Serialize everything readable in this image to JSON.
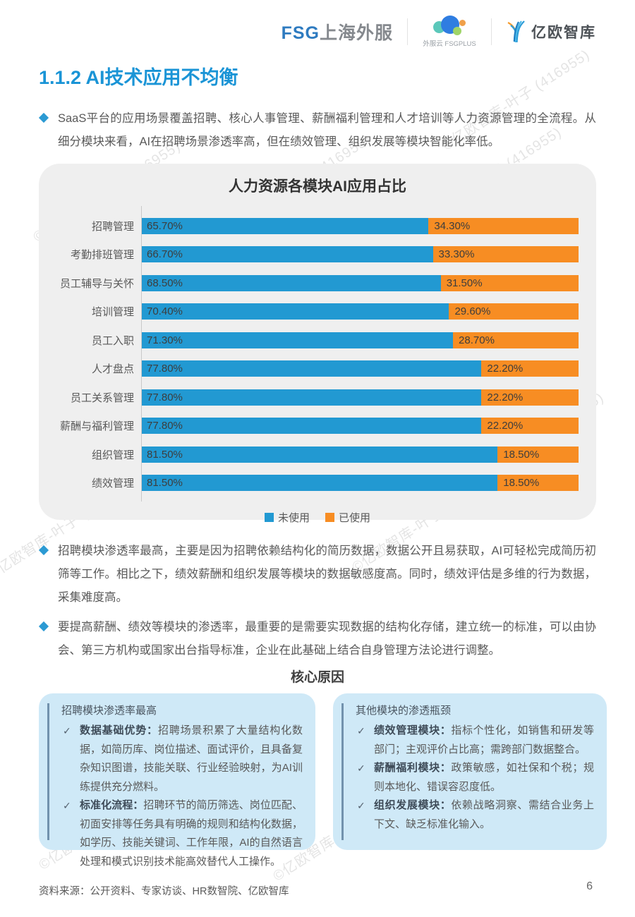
{
  "header": {
    "fsg_blue": "FSG",
    "fsg_gray": "上海外服",
    "fsgplus_caption": "外服云 FSGPLUS",
    "eo_name": "亿欧智库"
  },
  "page": {
    "section_title": "1.1.2 AI技术应用不均衡",
    "bullets": [
      "SaaS平台的应用场景覆盖招聘、核心人事管理、薪酬福利管理和人才培训等人力资源管理的全流程。从细分模块来看，AI在招聘场景渗透率高，但在绩效管理、组织发展等模块智能化率低。",
      "招聘模块渗透率最高，主要是因为招聘依赖结构化的简历数据，数据公开且易获取，AI可轻松完成简历初筛等工作。相比之下，绩效薪酬和组织发展等模块的数据敏感度高。同时，绩效评估是多维的行为数据，采集难度高。",
      "要提高薪酬、绩效等模块的渗透率，最重要的是需要实现数据的结构化存储，建立统一的标准，可以由协会、第三方机构或国家出台指导标准，企业在此基础上结合自身管理方法论进行调整。"
    ],
    "core_reason_title": "核心原因",
    "source": "资料来源：公开资料、专家访谈、HR数智院、亿欧智库",
    "page_number": "6",
    "watermark": "©亿欧智库-叶子 (416955)"
  },
  "chart_data": {
    "type": "bar",
    "orientation": "horizontal_stacked",
    "title": "人力资源各模块AI应用占比",
    "xlabel": "",
    "ylabel": "",
    "xlim": [
      0,
      100
    ],
    "grid": false,
    "legend_position": "bottom",
    "categories": [
      "招聘管理",
      "考勤排班管理",
      "员工辅导与关怀",
      "培训管理",
      "员工入职",
      "人才盘点",
      "员工关系管理",
      "薪酬与福利管理",
      "组织管理",
      "绩效管理"
    ],
    "series": [
      {
        "name": "未使用",
        "color": "#2299d2",
        "values": [
          65.7,
          66.7,
          68.5,
          70.4,
          71.3,
          77.8,
          77.8,
          77.8,
          81.5,
          81.5
        ],
        "labels": [
          "65.70%",
          "66.70%",
          "68.50%",
          "70.40%",
          "71.30%",
          "77.80%",
          "77.80%",
          "77.80%",
          "81.50%",
          "81.50%"
        ]
      },
      {
        "name": "已使用",
        "color": "#f78d23",
        "values": [
          34.3,
          33.3,
          31.5,
          29.6,
          28.7,
          22.2,
          22.2,
          22.2,
          18.5,
          18.5
        ],
        "labels": [
          "34.30%",
          "33.30%",
          "31.50%",
          "29.60%",
          "28.70%",
          "22.20%",
          "22.20%",
          "22.20%",
          "18.50%",
          "18.50%"
        ]
      }
    ]
  },
  "boxes": [
    {
      "title": "招聘模块渗透率最高",
      "items": [
        {
          "term": "数据基础优势：",
          "text": "招聘场景积累了大量结构化数据，如简历库、岗位描述、面试评价，且具备复杂知识图谱，技能关联、行业经验映射，为AI训练提供充分燃料。"
        },
        {
          "term": "标准化流程：",
          "text": "招聘环节的简历筛选、岗位匹配、初面安排等任务具有明确的规则和结构化数据，如学历、技能关键词、工作年限，AI的自然语言处理和模式识别技术能高效替代人工操作。"
        }
      ]
    },
    {
      "title": "其他模块的渗透瓶颈",
      "items": [
        {
          "term": "绩效管理模块：",
          "text": "指标个性化，如销售和研发等部门；主观评价占比高；需跨部门数据整合。"
        },
        {
          "term": "薪酬福利模块：",
          "text": "政策敏感，如社保和个税；规则本地化、错误容忍度低。"
        },
        {
          "term": "组织发展模块：",
          "text": "依赖战略洞察、需结合业务上下文、缺乏标准化输入。"
        }
      ]
    }
  ]
}
